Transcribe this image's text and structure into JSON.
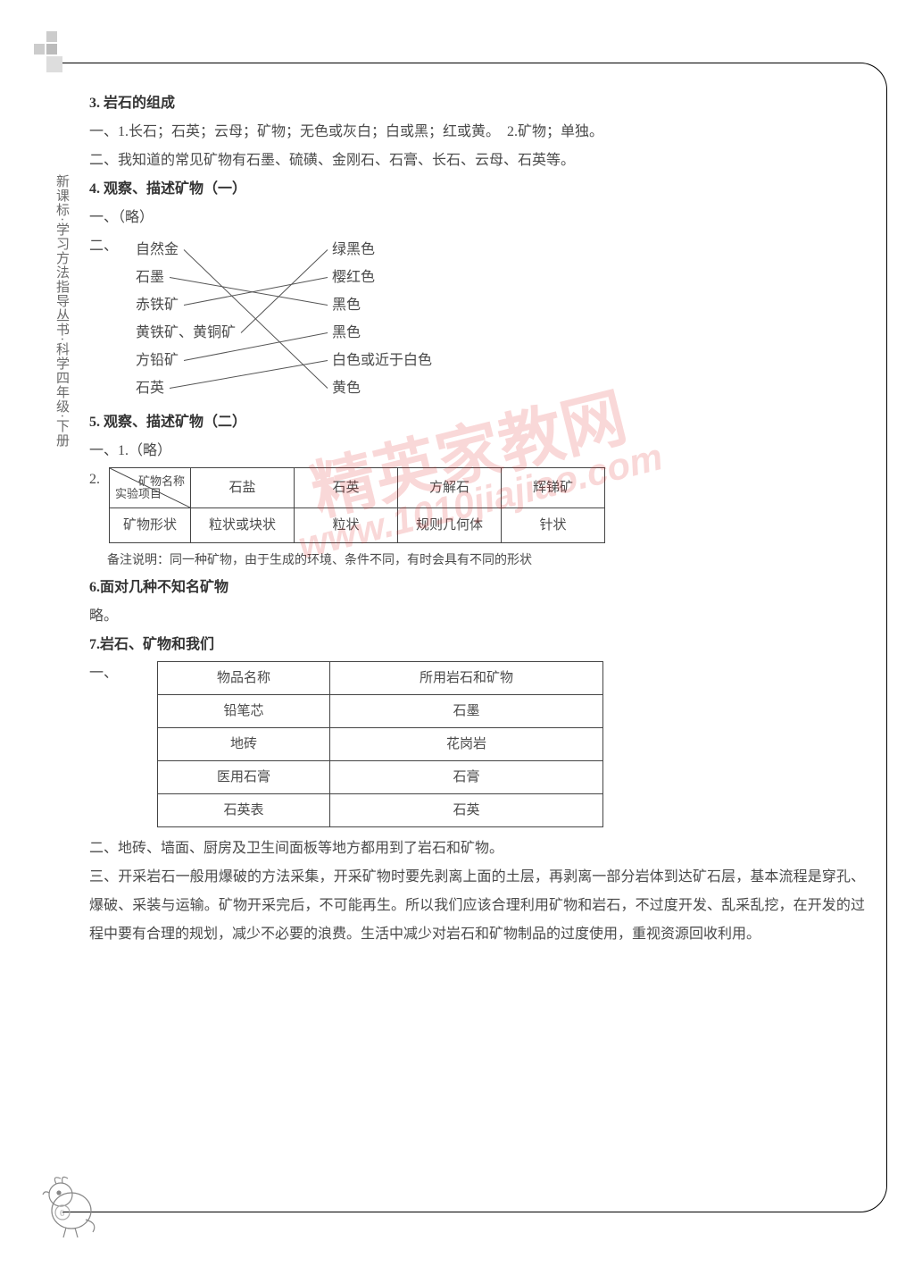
{
  "sidebar_text": "新课标·学习方法指导丛书·科学四年级·下册",
  "sections": {
    "s3": {
      "heading": "3. 岩石的组成",
      "line1": "一、1.长石；石英；云母；矿物；无色或灰白；白或黑；红或黄。　2.矿物；单独。",
      "line2": "二、我知道的常见矿物有石墨、硫磺、金刚石、石膏、长石、云母、石英等。"
    },
    "s4": {
      "heading": "4. 观察、描述矿物（一）",
      "line1": "一、（略）",
      "line2_prefix": "二、",
      "left_items": [
        "自然金",
        "石墨",
        "赤铁矿",
        "黄铁矿、黄铜矿",
        "方铅矿",
        "石英"
      ],
      "right_items": [
        "绿黑色",
        "樱红色",
        "黑色",
        "黑色",
        "白色或近于白色",
        "黄色"
      ],
      "connections": [
        [
          0,
          5
        ],
        [
          1,
          2
        ],
        [
          2,
          1
        ],
        [
          3,
          0
        ],
        [
          4,
          3
        ],
        [
          5,
          4
        ]
      ],
      "line_color": "#555555"
    },
    "s5": {
      "heading": "5. 观察、描述矿物（二）",
      "line1": "一、1.（略）",
      "prefix2": "2.",
      "table": {
        "diag_top": "矿物名称",
        "diag_bottom": "实验项目",
        "cols": [
          "石盐",
          "石英",
          "方解石",
          "辉锑矿"
        ],
        "row_label": "矿物形状",
        "row_vals": [
          "粒状或块状",
          "粒状",
          "规则几何体",
          "针状"
        ]
      },
      "note": "备注说明：同一种矿物，由于生成的环境、条件不同，有时会具有不同的形状"
    },
    "s6": {
      "heading": "6.面对几种不知名矿物",
      "line1": "略。"
    },
    "s7": {
      "heading": "7.岩石、矿物和我们",
      "prefix1": "一、",
      "table": {
        "head": [
          "物品名称",
          "所用岩石和矿物"
        ],
        "rows": [
          [
            "铅笔芯",
            "石墨"
          ],
          [
            "地砖",
            "花岗岩"
          ],
          [
            "医用石膏",
            "石膏"
          ],
          [
            "石英表",
            "石英"
          ]
        ]
      },
      "line2": "二、地砖、墙面、厨房及卫生间面板等地方都用到了岩石和矿物。",
      "line3": "三、开采岩石一般用爆破的方法采集，开采矿物时要先剥离上面的土层，再剥离一部分岩体到达矿石层，基本流程是穿孔、爆破、采装与运输。矿物开采完后，不可能再生。所以我们应该合理利用矿物和岩石，不过度开发、乱采乱挖，在开发的过程中要有合理的规划，减少不必要的浪费。生活中减少对岩石和矿物制品的过度使用，重视资源回收利用。"
    }
  },
  "watermark": {
    "main": "精英家教网",
    "url": "www.1010jiajiao.com"
  },
  "colors": {
    "text": "#4a4a4a",
    "border": "#000000",
    "deco": "#cccccc",
    "watermark": "rgba(220,40,40,0.18)"
  }
}
